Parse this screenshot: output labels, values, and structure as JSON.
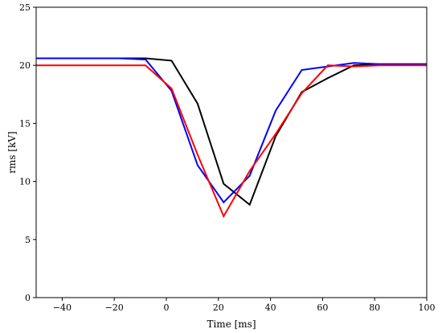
{
  "chart_data": {
    "type": "line",
    "xlabel": "Time [ms]",
    "ylabel": "rms [kV]",
    "xlim": [
      -50,
      100
    ],
    "ylim": [
      0,
      25
    ],
    "xticks": [
      -40,
      -20,
      0,
      20,
      40,
      60,
      80,
      100
    ],
    "yticks": [
      0,
      5,
      10,
      15,
      20,
      25
    ],
    "grid": false,
    "series": [
      {
        "color": "#000000",
        "x": [
          -50,
          -40,
          -30,
          -18,
          -8,
          2,
          12,
          22,
          32,
          42,
          52,
          62,
          72,
          82,
          100
        ],
        "y": [
          20.6,
          20.6,
          20.6,
          20.6,
          20.6,
          20.4,
          16.7,
          9.8,
          8.0,
          13.9,
          17.7,
          18.9,
          20.0,
          20.1,
          20.1
        ]
      },
      {
        "color": "#0000ff",
        "x": [
          -50,
          -40,
          -30,
          -18,
          -8,
          2,
          12,
          22,
          32,
          42,
          52,
          62,
          72,
          82,
          100
        ],
        "y": [
          20.6,
          20.6,
          20.6,
          20.6,
          20.5,
          17.8,
          11.4,
          8.2,
          10.5,
          16.1,
          19.6,
          19.9,
          20.2,
          20.1,
          20.1
        ]
      },
      {
        "color": "#ff0000",
        "x": [
          -50,
          -40,
          -30,
          -18,
          -8,
          2,
          12,
          22,
          32,
          42,
          52,
          62,
          72,
          82,
          100
        ],
        "y": [
          20.0,
          20.0,
          20.0,
          20.0,
          20.0,
          18.0,
          12.3,
          7.0,
          10.9,
          14.1,
          17.6,
          20.0,
          19.9,
          20.0,
          20.0
        ]
      }
    ]
  }
}
